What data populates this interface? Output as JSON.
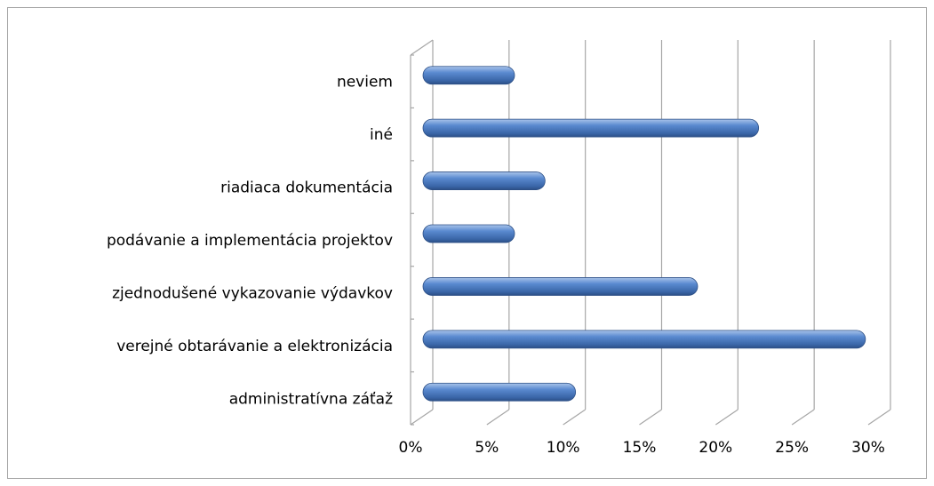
{
  "chart_data": {
    "type": "bar",
    "orientation": "horizontal",
    "categories": [
      "neviem",
      "iné",
      "riadiaca dokumentácia",
      "podávanie a implementácia projektov",
      "zjednodušené vykazovanie výdavkov",
      "verejné obtarávanie a elektronizácia",
      "administratívna záťaž"
    ],
    "values": [
      6,
      22,
      8,
      6,
      18,
      29,
      10
    ],
    "color": "#4f81bd",
    "xlim": [
      0,
      30
    ],
    "xticks": [
      {
        "value": 0,
        "label": "0%"
      },
      {
        "value": 5,
        "label": "5%"
      },
      {
        "value": 10,
        "label": "10%"
      },
      {
        "value": 15,
        "label": "15%"
      },
      {
        "value": 20,
        "label": "20%"
      },
      {
        "value": 25,
        "label": "25%"
      },
      {
        "value": 30,
        "label": "30%"
      }
    ],
    "grid": true
  }
}
